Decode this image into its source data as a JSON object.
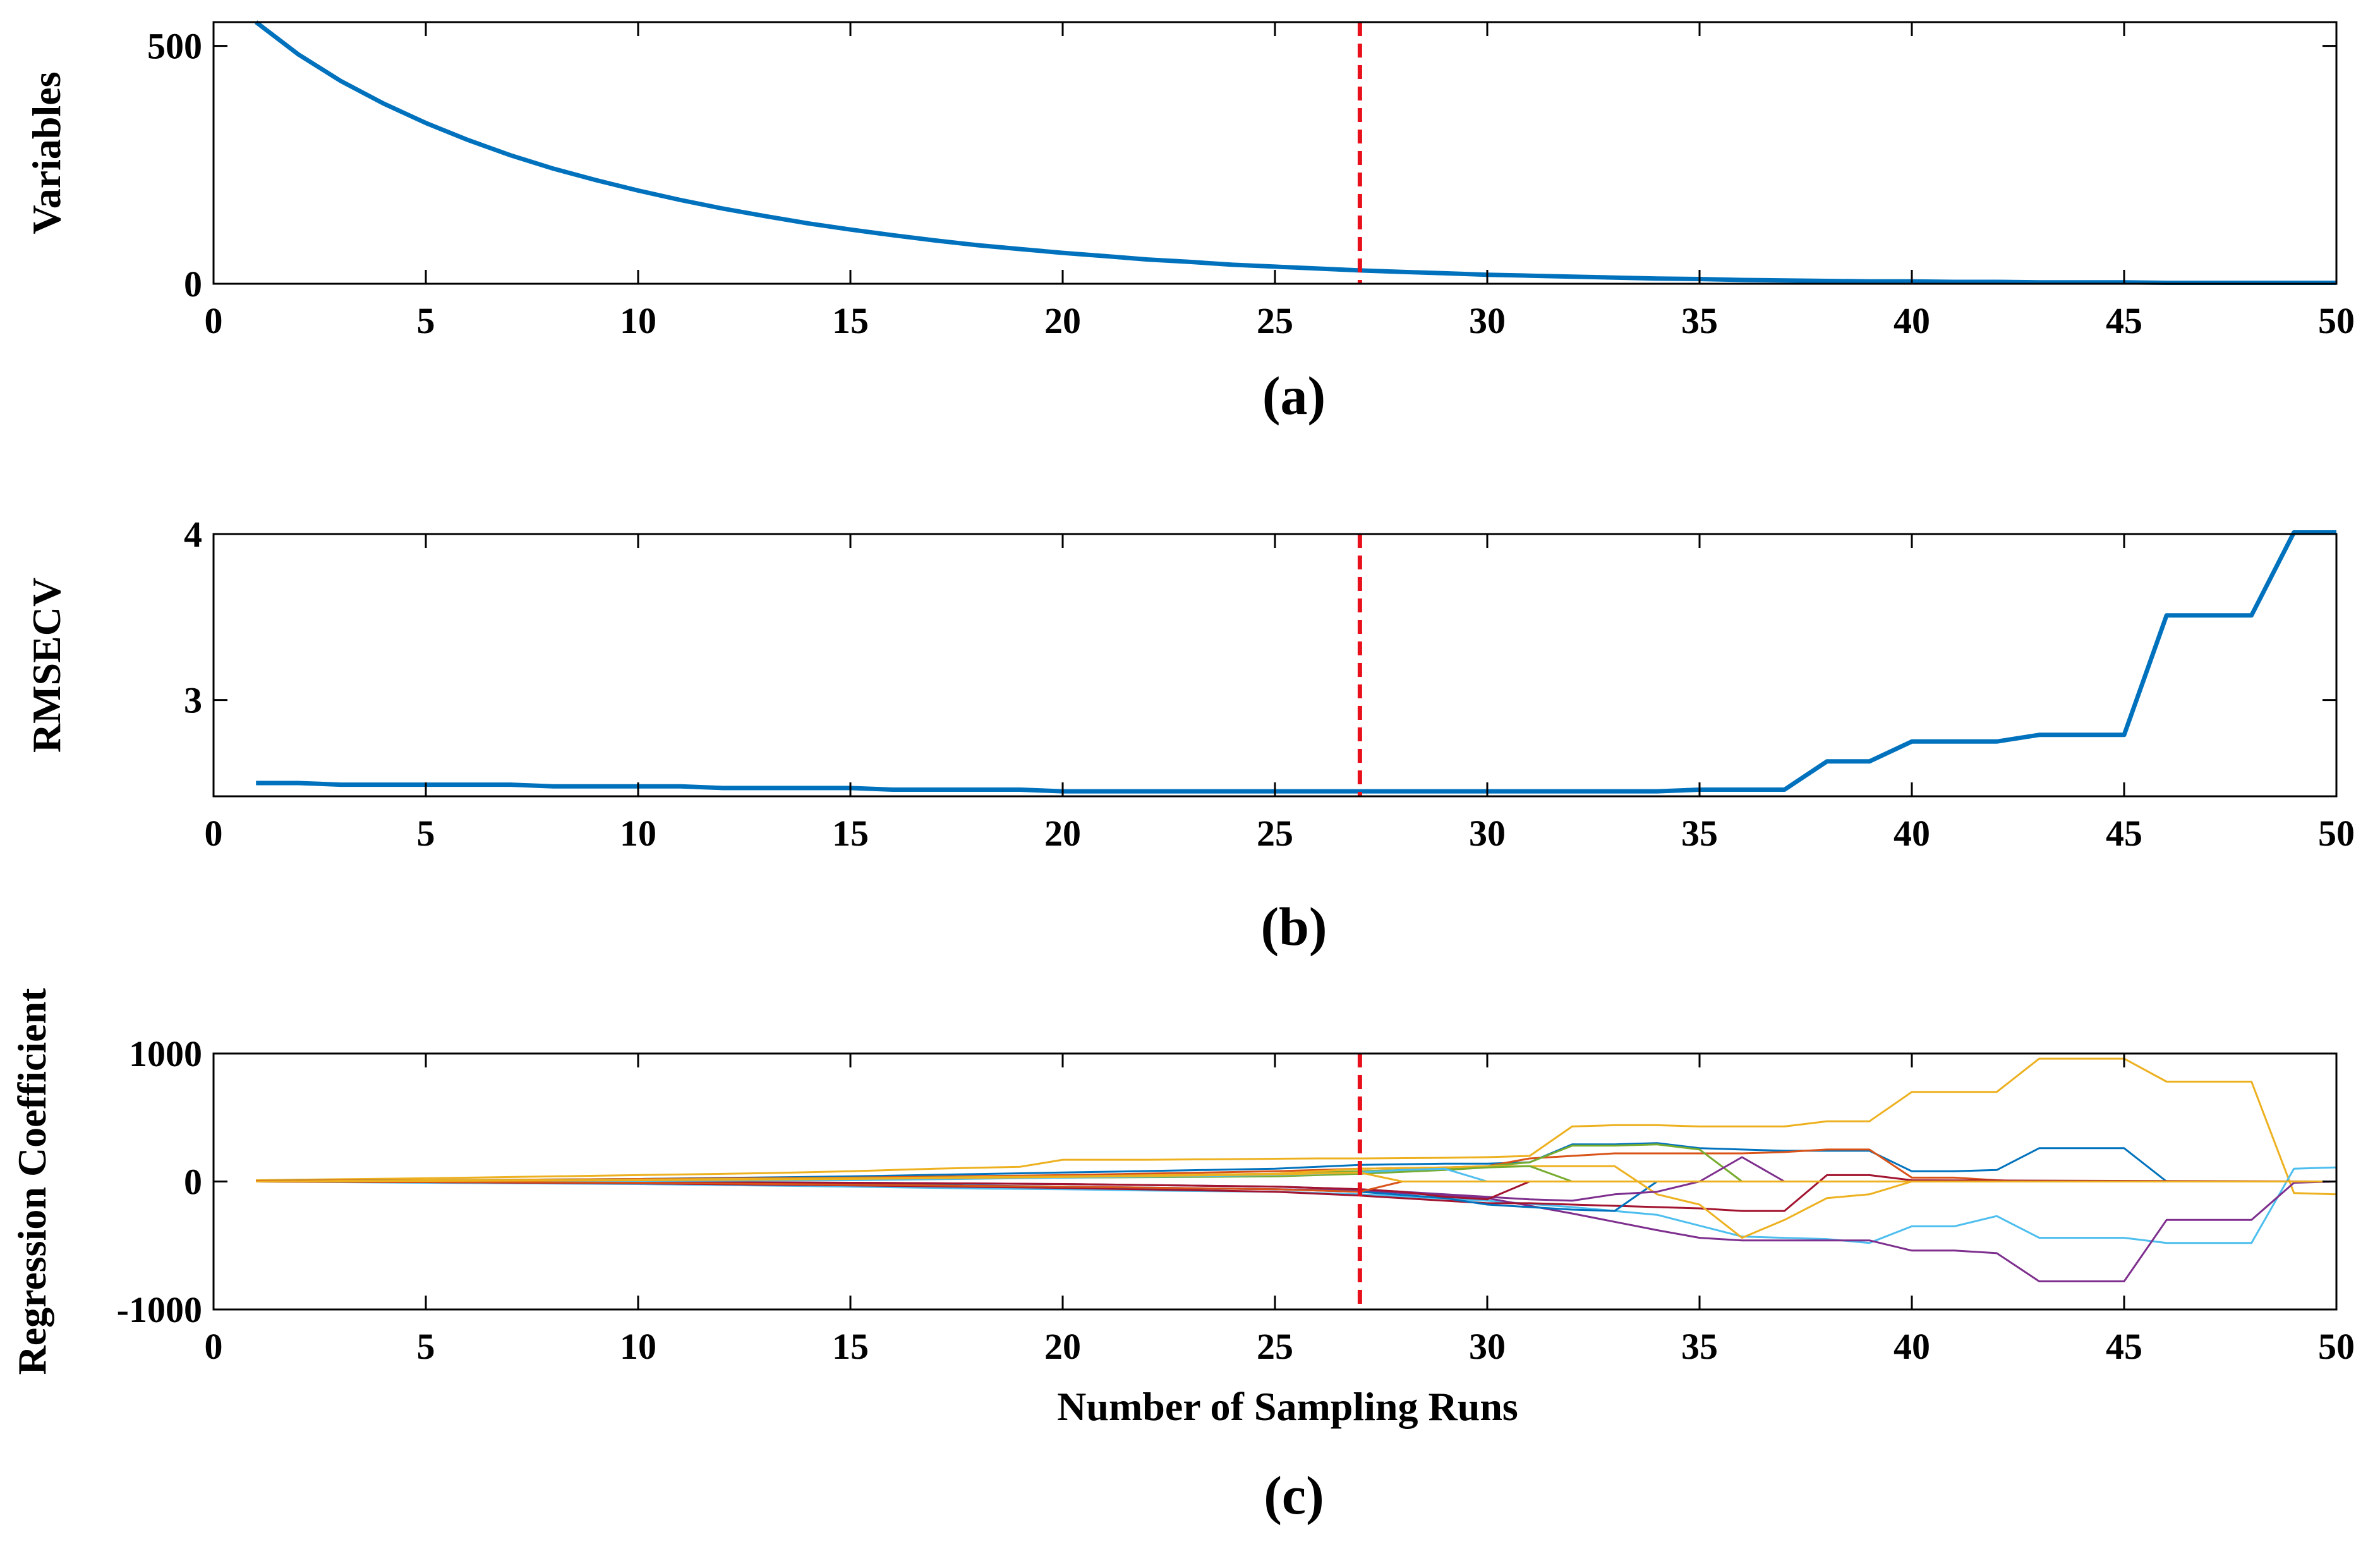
{
  "chart_data": [
    {
      "panel": "a",
      "caption": "(a)",
      "type": "line",
      "xlabel": "",
      "ylabel": "Variables",
      "xlim": [
        0,
        50
      ],
      "ylim": [
        0,
        550
      ],
      "xticks": [
        0,
        5,
        10,
        15,
        20,
        25,
        30,
        35,
        40,
        45,
        50
      ],
      "yticks": [
        0,
        500
      ],
      "grid": false,
      "marker_line": {
        "x": 27,
        "style": "dashed",
        "color": "#e8101a"
      },
      "series": [
        {
          "color": "#0072bd",
          "x": [
            1,
            2,
            3,
            4,
            5,
            6,
            7,
            8,
            9,
            10,
            11,
            12,
            13,
            14,
            15,
            16,
            17,
            18,
            19,
            20,
            21,
            22,
            23,
            24,
            25,
            26,
            27,
            28,
            29,
            30,
            31,
            32,
            33,
            34,
            35,
            36,
            37,
            38,
            39,
            40,
            41,
            42,
            43,
            44,
            45,
            46,
            47,
            48,
            49,
            50
          ],
          "values": [
            550,
            482,
            426,
            379,
            338,
            302,
            270,
            242,
            218,
            196,
            176,
            158,
            142,
            127,
            114,
            102,
            91,
            81,
            73,
            65,
            58,
            51,
            46,
            40,
            36,
            32,
            28,
            25,
            22,
            19,
            17,
            15,
            13,
            11,
            10,
            8,
            7,
            6,
            5,
            5,
            4,
            4,
            3,
            3,
            3,
            2,
            2,
            2,
            2,
            2
          ]
        }
      ]
    },
    {
      "panel": "b",
      "caption": "(b)",
      "type": "line",
      "xlabel": "",
      "ylabel": "RMSECV",
      "xlim": [
        0,
        50
      ],
      "ylim": [
        2.42,
        4.0
      ],
      "xticks": [
        0,
        5,
        10,
        15,
        20,
        25,
        30,
        35,
        40,
        45,
        50
      ],
      "yticks": [
        3,
        4
      ],
      "grid": false,
      "marker_line": {
        "x": 27,
        "style": "dashed",
        "color": "#e8101a"
      },
      "series": [
        {
          "color": "#0072bd",
          "x": [
            1,
            2,
            3,
            4,
            5,
            6,
            7,
            8,
            9,
            10,
            11,
            12,
            13,
            14,
            15,
            16,
            17,
            18,
            19,
            20,
            21,
            22,
            23,
            24,
            25,
            26,
            27,
            28,
            29,
            30,
            31,
            32,
            33,
            34,
            35,
            36,
            37,
            38,
            39,
            40,
            41,
            42,
            43,
            44,
            45,
            46,
            47,
            48,
            49,
            50
          ],
          "values": [
            2.5,
            2.5,
            2.49,
            2.49,
            2.49,
            2.49,
            2.49,
            2.48,
            2.48,
            2.48,
            2.48,
            2.47,
            2.47,
            2.47,
            2.47,
            2.46,
            2.46,
            2.46,
            2.46,
            2.45,
            2.45,
            2.45,
            2.45,
            2.45,
            2.45,
            2.45,
            2.45,
            2.45,
            2.45,
            2.45,
            2.45,
            2.45,
            2.45,
            2.45,
            2.46,
            2.46,
            2.46,
            2.63,
            2.63,
            2.75,
            2.75,
            2.75,
            2.79,
            2.79,
            2.79,
            3.51,
            3.51,
            3.51,
            4.01,
            4.01
          ]
        }
      ]
    },
    {
      "panel": "c",
      "caption": "(c)",
      "type": "line",
      "xlabel": "Number of Sampling Runs",
      "ylabel": "Regression Coefficient",
      "xlim": [
        0,
        50
      ],
      "ylim": [
        -1000,
        1000
      ],
      "xticks": [
        0,
        5,
        10,
        15,
        20,
        25,
        30,
        35,
        40,
        45,
        50
      ],
      "yticks": [
        -1000,
        0,
        1000
      ],
      "grid": false,
      "marker_line": {
        "x": 27,
        "style": "dashed",
        "color": "#e8101a"
      },
      "series": [
        {
          "color": "#edb120",
          "x": [
            1,
            3,
            5,
            7,
            9,
            11,
            13,
            15,
            17,
            19,
            20,
            22,
            24,
            26,
            27,
            29,
            30,
            31,
            32,
            33,
            34,
            35,
            36,
            37,
            38,
            39,
            40,
            41,
            42,
            43,
            44,
            45,
            46,
            47,
            48,
            49,
            50
          ],
          "values": [
            10,
            18,
            25,
            35,
            45,
            55,
            65,
            80,
            100,
            115,
            170,
            170,
            175,
            180,
            180,
            185,
            190,
            200,
            430,
            440,
            440,
            430,
            430,
            430,
            470,
            470,
            700,
            700,
            700,
            960,
            960,
            960,
            780,
            780,
            780,
            -90,
            -100
          ]
        },
        {
          "color": "#4dbeee",
          "x": [
            1,
            5,
            10,
            15,
            18,
            20,
            22,
            25,
            27,
            30,
            32,
            34,
            36,
            38,
            39,
            40,
            41,
            42,
            43,
            44,
            45,
            46,
            47,
            48,
            49,
            50
          ],
          "values": [
            0,
            -10,
            -20,
            -40,
            -55,
            -60,
            -70,
            -80,
            -100,
            -150,
            -200,
            -260,
            -430,
            -450,
            -480,
            -350,
            -350,
            -270,
            -440,
            -440,
            -440,
            -480,
            -480,
            -480,
            100,
            110
          ]
        },
        {
          "color": "#7e2f8e",
          "x": [
            1,
            5,
            10,
            15,
            20,
            25,
            27,
            30,
            32,
            34,
            35,
            36,
            38,
            39,
            40,
            41,
            42,
            43,
            44,
            45,
            46,
            47,
            48,
            49,
            50
          ],
          "values": [
            0,
            -5,
            -15,
            -30,
            -45,
            -60,
            -70,
            -130,
            -250,
            -380,
            -440,
            -460,
            -460,
            -460,
            -540,
            -540,
            -560,
            -780,
            -780,
            -780,
            -300,
            -300,
            -300,
            -10,
            0
          ]
        },
        {
          "color": "#0072bd",
          "x": [
            1,
            5,
            10,
            15,
            20,
            25,
            27,
            29,
            30,
            31,
            32,
            33,
            34,
            35,
            36,
            37,
            38,
            39,
            40,
            41,
            42,
            43,
            44,
            45,
            46,
            47,
            48,
            49,
            50
          ],
          "values": [
            5,
            10,
            20,
            40,
            70,
            100,
            130,
            140,
            140,
            150,
            290,
            290,
            300,
            260,
            250,
            240,
            240,
            240,
            80,
            80,
            90,
            260,
            260,
            260,
            0,
            0,
            0,
            0,
            0
          ]
        },
        {
          "color": "#d95319",
          "x": [
            1,
            5,
            10,
            15,
            20,
            25,
            27,
            29,
            30,
            31,
            32,
            33,
            34,
            35,
            36,
            37,
            38,
            39,
            40,
            41,
            42,
            43,
            50
          ],
          "values": [
            5,
            10,
            20,
            30,
            50,
            80,
            100,
            110,
            120,
            180,
            200,
            220,
            220,
            220,
            220,
            230,
            250,
            250,
            30,
            30,
            10,
            0,
            0
          ]
        },
        {
          "color": "#77ac30",
          "x": [
            1,
            5,
            10,
            15,
            20,
            25,
            27,
            29,
            30,
            31,
            32,
            33,
            34,
            35,
            36,
            37,
            38,
            50
          ],
          "values": [
            0,
            5,
            15,
            25,
            40,
            60,
            80,
            100,
            120,
            150,
            280,
            280,
            290,
            250,
            0,
            0,
            0,
            0
          ]
        },
        {
          "color": "#a2142f",
          "x": [
            1,
            5,
            10,
            15,
            20,
            25,
            27,
            29,
            30,
            31,
            32,
            33,
            34,
            35,
            36,
            37,
            38,
            39,
            40,
            50
          ],
          "values": [
            0,
            -5,
            -15,
            -30,
            -50,
            -80,
            -110,
            -150,
            -170,
            -170,
            -180,
            -190,
            -200,
            -210,
            -230,
            -230,
            50,
            50,
            10,
            0
          ]
        },
        {
          "color": "#0072bd",
          "x": [
            1,
            5,
            10,
            15,
            20,
            25,
            27,
            29,
            30,
            31,
            32,
            33,
            34,
            50
          ],
          "values": [
            0,
            0,
            -10,
            -20,
            -40,
            -60,
            -80,
            -130,
            -180,
            -200,
            -220,
            -230,
            0,
            0
          ]
        },
        {
          "color": "#edb120",
          "x": [
            1,
            5,
            10,
            15,
            20,
            25,
            27,
            29,
            30,
            31,
            32,
            33,
            34,
            35,
            36,
            37,
            38,
            39,
            40,
            50
          ],
          "values": [
            0,
            10,
            15,
            25,
            40,
            60,
            100,
            110,
            120,
            120,
            120,
            120,
            -100,
            -180,
            -440,
            -300,
            -130,
            -100,
            0,
            0
          ]
        },
        {
          "color": "#7e2f8e",
          "x": [
            1,
            5,
            10,
            15,
            20,
            25,
            27,
            29,
            30,
            31,
            32,
            33,
            34,
            35,
            36,
            37,
            50
          ],
          "values": [
            0,
            0,
            -5,
            -10,
            -20,
            -40,
            -60,
            -100,
            -120,
            -140,
            -150,
            -100,
            -80,
            0,
            190,
            0,
            0
          ]
        },
        {
          "color": "#77ac30",
          "x": [
            1,
            5,
            10,
            15,
            20,
            25,
            27,
            29,
            30,
            31,
            32,
            50
          ],
          "values": [
            0,
            5,
            10,
            20,
            30,
            40,
            60,
            90,
            110,
            120,
            0,
            0
          ]
        },
        {
          "color": "#a2142f",
          "x": [
            1,
            5,
            10,
            15,
            20,
            25,
            27,
            28,
            29,
            30,
            31,
            50
          ],
          "values": [
            0,
            0,
            -5,
            -10,
            -20,
            -40,
            -60,
            -80,
            -120,
            -140,
            0,
            0
          ]
        },
        {
          "color": "#4dbeee",
          "x": [
            1,
            5,
            10,
            15,
            20,
            25,
            27,
            28,
            29,
            30,
            50
          ],
          "values": [
            0,
            0,
            5,
            10,
            30,
            50,
            70,
            90,
            100,
            0,
            0
          ]
        },
        {
          "color": "#d95319",
          "x": [
            1,
            5,
            10,
            15,
            20,
            25,
            27,
            28,
            50
          ],
          "values": [
            0,
            -5,
            -10,
            -25,
            -40,
            -60,
            -80,
            0,
            0
          ]
        },
        {
          "color": "#edb120",
          "x": [
            1,
            5,
            10,
            15,
            20,
            25,
            27,
            28,
            50
          ],
          "values": [
            0,
            5,
            10,
            20,
            35,
            55,
            70,
            0,
            0
          ]
        }
      ]
    }
  ]
}
